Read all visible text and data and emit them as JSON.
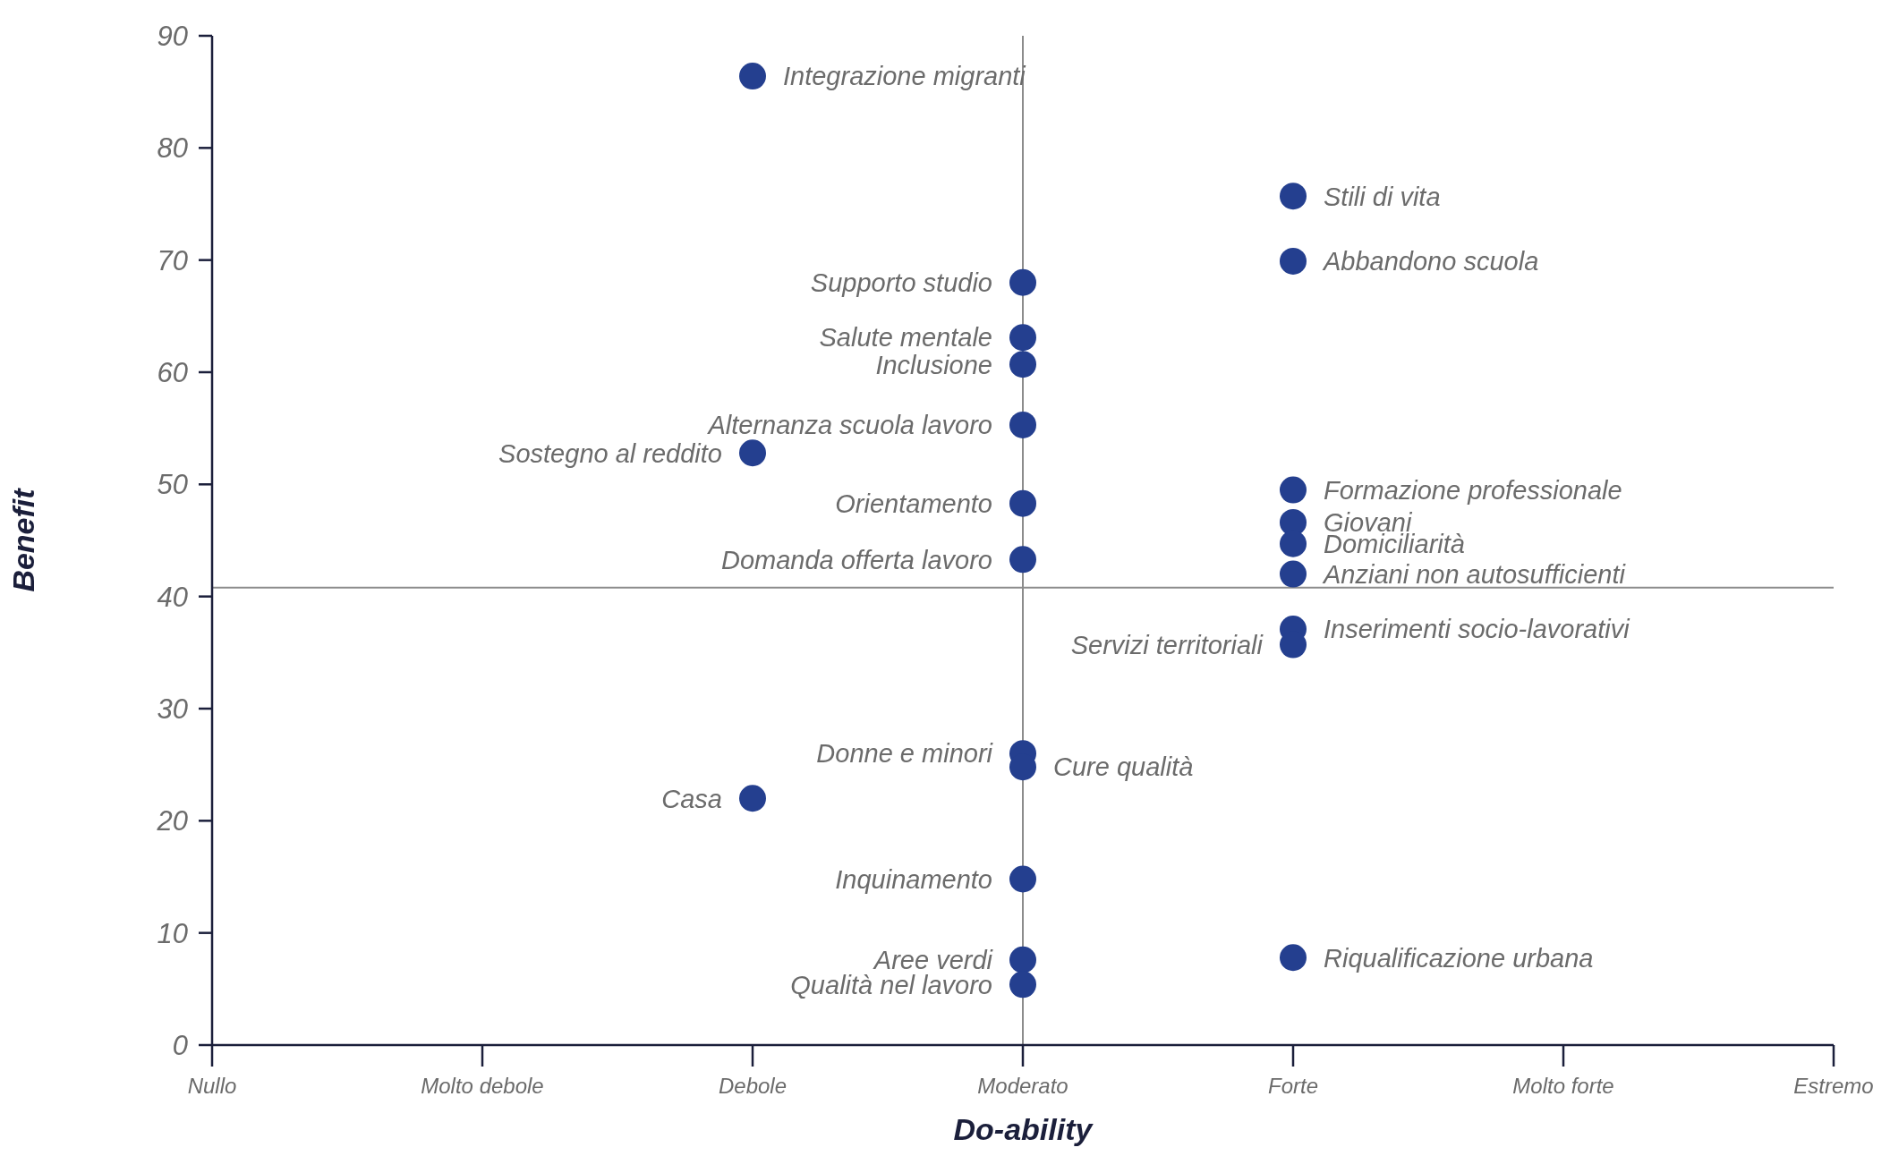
{
  "chart_data": {
    "type": "scatter",
    "xlabel": "Do-ability",
    "ylabel": "Benefit",
    "categories": [
      "Nullo",
      "Molto debole",
      "Debole",
      "Moderato",
      "Forte",
      "Molto forte",
      "Estremo"
    ],
    "ylim": [
      0,
      90
    ],
    "yticks": [
      0,
      10,
      20,
      30,
      40,
      50,
      60,
      70,
      80,
      90
    ],
    "grid": false,
    "legend": false,
    "marker": "circle",
    "series": [
      {
        "color": "#243f8f",
        "x": [
          "Debole",
          "Forte",
          "Forte",
          "Moderato",
          "Moderato",
          "Moderato",
          "Moderato",
          "Debole",
          "Forte",
          "Moderato",
          "Forte",
          "Forte",
          "Moderato",
          "Forte",
          "Forte",
          "Forte",
          "Moderato",
          "Moderato",
          "Debole",
          "Moderato",
          "Moderato",
          "Forte",
          "Moderato"
        ],
        "values": [
          86.4,
          75.7,
          69.9,
          68.0,
          63.1,
          60.7,
          55.3,
          52.8,
          49.5,
          48.3,
          46.6,
          44.7,
          43.3,
          42.0,
          37.1,
          35.7,
          26.0,
          24.8,
          22.0,
          14.8,
          7.6,
          7.8,
          5.4
        ]
      }
    ],
    "ref_lines": [
      {
        "axis": "x",
        "value": "Moderato",
        "color": "#8c8c8c"
      },
      {
        "axis": "y",
        "value": 40.8,
        "color": "#8c8c8c"
      }
    ],
    "annotations": [
      {
        "text": "Integrazione migranti",
        "x": "Debole",
        "y": 86.4
      },
      {
        "text": "Stili di vita",
        "x": "Forte",
        "y": 75.7
      },
      {
        "text": "Abbandono scuola",
        "x": "Forte",
        "y": 69.9
      },
      {
        "text": "Supporto studio",
        "x": "Moderato",
        "y": 68.0
      },
      {
        "text": "Salute mentale",
        "x": "Moderato",
        "y": 63.1
      },
      {
        "text": "Inclusione",
        "x": "Moderato",
        "y": 60.7
      },
      {
        "text": "Alternanza scuola lavoro",
        "x": "Moderato",
        "y": 55.3
      },
      {
        "text": "Sostegno al reddito",
        "x": "Debole",
        "y": 52.8
      },
      {
        "text": "Formazione professionale",
        "x": "Forte",
        "y": 49.5
      },
      {
        "text": "Orientamento",
        "x": "Moderato",
        "y": 48.3
      },
      {
        "text": "Giovani",
        "x": "Forte",
        "y": 46.6
      },
      {
        "text": "Domiciliarità",
        "x": "Forte",
        "y": 44.7
      },
      {
        "text": "Domanda offerta lavoro",
        "x": "Moderato",
        "y": 43.3
      },
      {
        "text": "Anziani non autosufficienti",
        "x": "Forte",
        "y": 42.0
      },
      {
        "text": "Inserimenti socio-lavorativi",
        "x": "Forte",
        "y": 37.1
      },
      {
        "text": "Servizi territoriali",
        "x": "Forte",
        "y": 35.7
      },
      {
        "text": "Donne e minori",
        "x": "Moderato",
        "y": 26.0
      },
      {
        "text": "Cure qualità",
        "x": "Moderato",
        "y": 24.8
      },
      {
        "text": "Casa",
        "x": "Debole",
        "y": 22.0
      },
      {
        "text": "Inquinamento",
        "x": "Moderato",
        "y": 14.8
      },
      {
        "text": "Aree verdi",
        "x": "Moderato",
        "y": 7.6
      },
      {
        "text": "Riqualificazione urbana",
        "x": "Forte",
        "y": 7.8
      },
      {
        "text": "Qualità nel lavoro",
        "x": "Moderato",
        "y": 5.4
      }
    ]
  }
}
